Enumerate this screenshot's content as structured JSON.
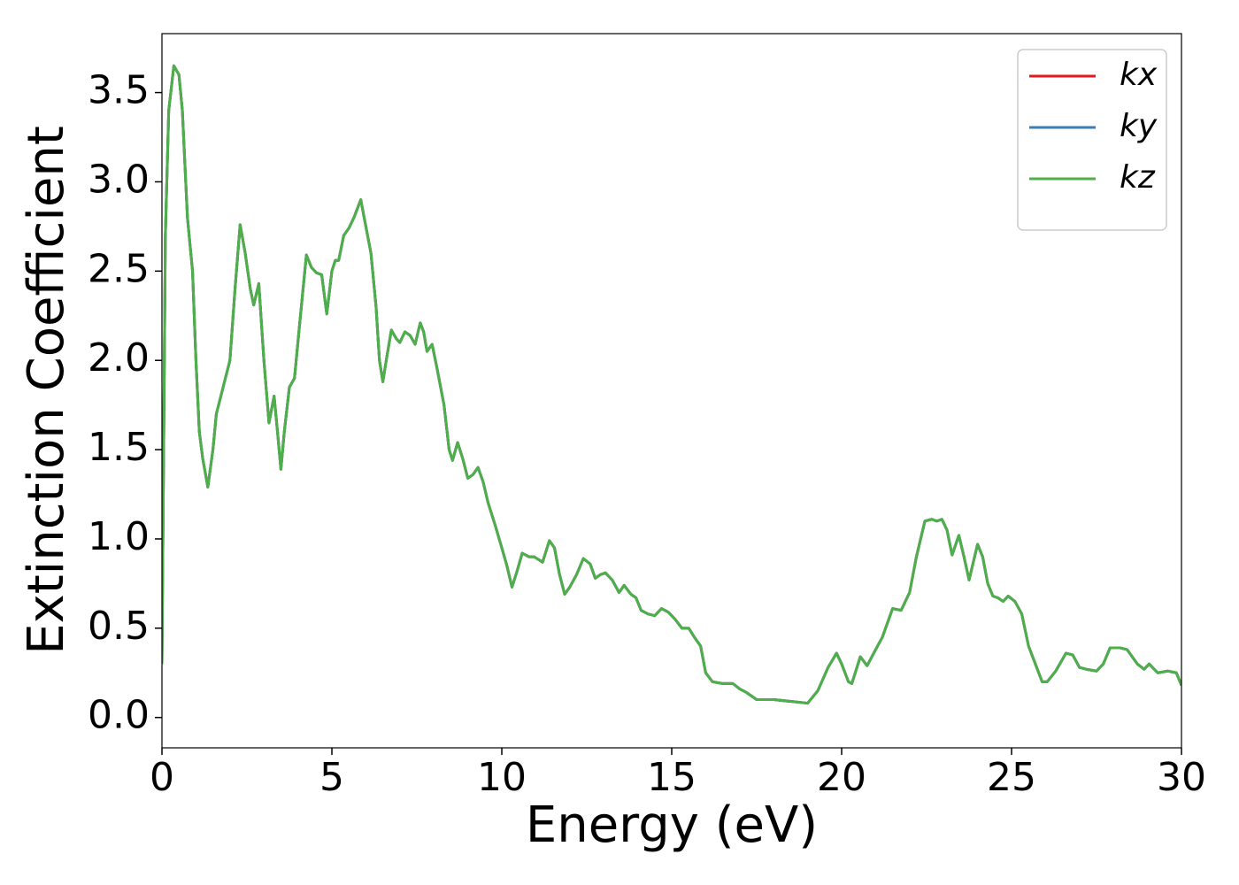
{
  "chart_data": {
    "type": "line",
    "xlabel": "Energy (eV)",
    "ylabel": "Extinction Coefficient",
    "x": [
      0,
      0.05,
      0.1,
      0.2,
      0.35,
      0.5,
      0.6,
      0.75,
      0.9,
      1.0,
      1.1,
      1.2,
      1.35,
      1.5,
      1.6,
      1.8,
      2.0,
      2.15,
      2.3,
      2.45,
      2.6,
      2.7,
      2.85,
      3.0,
      3.15,
      3.3,
      3.4,
      3.5,
      3.6,
      3.75,
      3.9,
      4.05,
      4.25,
      4.4,
      4.55,
      4.7,
      4.85,
      5.0,
      5.1,
      5.2,
      5.35,
      5.5,
      5.65,
      5.85,
      6.0,
      6.15,
      6.3,
      6.4,
      6.5,
      6.6,
      6.75,
      6.9,
      7.0,
      7.15,
      7.3,
      7.45,
      7.6,
      7.7,
      7.8,
      7.95,
      8.1,
      8.3,
      8.45,
      8.55,
      8.7,
      8.85,
      9.0,
      9.15,
      9.3,
      9.45,
      9.6,
      9.8,
      10.0,
      10.15,
      10.3,
      10.45,
      10.6,
      10.8,
      10.95,
      11.2,
      11.4,
      11.55,
      11.7,
      11.85,
      12.0,
      12.2,
      12.4,
      12.6,
      12.75,
      12.9,
      13.05,
      13.25,
      13.45,
      13.6,
      13.8,
      13.95,
      14.1,
      14.3,
      14.5,
      14.7,
      14.9,
      15.1,
      15.3,
      15.5,
      15.7,
      15.85,
      16.0,
      16.2,
      16.5,
      16.8,
      17.0,
      17.2,
      17.5,
      18.0,
      18.5,
      19.0,
      19.3,
      19.6,
      19.85,
      20.0,
      20.2,
      20.3,
      20.55,
      20.75,
      21.0,
      21.2,
      21.5,
      21.75,
      22.0,
      22.2,
      22.45,
      22.65,
      22.8,
      22.95,
      23.1,
      23.25,
      23.45,
      23.6,
      23.75,
      24.0,
      24.15,
      24.3,
      24.45,
      24.6,
      24.75,
      24.9,
      25.1,
      25.3,
      25.5,
      25.7,
      25.9,
      26.05,
      26.3,
      26.6,
      26.8,
      27.0,
      27.2,
      27.5,
      27.7,
      27.9,
      28.2,
      28.4,
      28.7,
      28.9,
      29.05,
      29.3,
      29.6,
      29.85,
      30.0
    ],
    "series": [
      {
        "name": "kx",
        "color": "#e41a1c",
        "values": [
          0.3,
          1.5,
          2.7,
          3.4,
          3.65,
          3.6,
          3.4,
          2.8,
          2.5,
          2.0,
          1.6,
          1.45,
          1.29,
          1.5,
          1.7,
          1.85,
          2.0,
          2.4,
          2.76,
          2.6,
          2.4,
          2.31,
          2.43,
          2.0,
          1.65,
          1.8,
          1.6,
          1.39,
          1.6,
          1.85,
          1.9,
          2.2,
          2.59,
          2.52,
          2.49,
          2.48,
          2.26,
          2.5,
          2.56,
          2.56,
          2.7,
          2.74,
          2.8,
          2.9,
          2.75,
          2.6,
          2.3,
          2.0,
          1.88,
          2.0,
          2.17,
          2.12,
          2.1,
          2.16,
          2.14,
          2.09,
          2.21,
          2.16,
          2.05,
          2.09,
          1.95,
          1.75,
          1.5,
          1.44,
          1.54,
          1.45,
          1.34,
          1.36,
          1.4,
          1.32,
          1.2,
          1.08,
          0.95,
          0.85,
          0.73,
          0.82,
          0.92,
          0.9,
          0.9,
          0.87,
          0.99,
          0.95,
          0.8,
          0.69,
          0.73,
          0.8,
          0.89,
          0.86,
          0.78,
          0.8,
          0.81,
          0.77,
          0.7,
          0.74,
          0.69,
          0.67,
          0.6,
          0.58,
          0.57,
          0.61,
          0.59,
          0.55,
          0.5,
          0.5,
          0.44,
          0.4,
          0.25,
          0.2,
          0.19,
          0.19,
          0.16,
          0.14,
          0.1,
          0.1,
          0.09,
          0.08,
          0.15,
          0.28,
          0.36,
          0.3,
          0.2,
          0.19,
          0.34,
          0.29,
          0.38,
          0.45,
          0.61,
          0.6,
          0.7,
          0.9,
          1.1,
          1.11,
          1.1,
          1.11,
          1.05,
          0.91,
          1.02,
          0.9,
          0.77,
          0.97,
          0.9,
          0.75,
          0.68,
          0.67,
          0.65,
          0.68,
          0.65,
          0.58,
          0.4,
          0.3,
          0.2,
          0.2,
          0.26,
          0.36,
          0.35,
          0.28,
          0.27,
          0.26,
          0.3,
          0.39,
          0.39,
          0.38,
          0.3,
          0.27,
          0.3,
          0.25,
          0.26,
          0.25,
          0.18
        ]
      },
      {
        "name": "ky",
        "color": "#377eb8",
        "values": [
          0.3,
          1.5,
          2.7,
          3.4,
          3.65,
          3.6,
          3.4,
          2.8,
          2.5,
          2.0,
          1.6,
          1.45,
          1.29,
          1.5,
          1.7,
          1.85,
          2.0,
          2.4,
          2.76,
          2.6,
          2.4,
          2.31,
          2.43,
          2.0,
          1.65,
          1.8,
          1.6,
          1.39,
          1.6,
          1.85,
          1.9,
          2.2,
          2.59,
          2.52,
          2.49,
          2.48,
          2.26,
          2.5,
          2.56,
          2.56,
          2.7,
          2.74,
          2.8,
          2.9,
          2.75,
          2.6,
          2.3,
          2.0,
          1.88,
          2.0,
          2.17,
          2.12,
          2.1,
          2.16,
          2.14,
          2.09,
          2.21,
          2.16,
          2.05,
          2.09,
          1.95,
          1.75,
          1.5,
          1.44,
          1.54,
          1.45,
          1.34,
          1.36,
          1.4,
          1.32,
          1.2,
          1.08,
          0.95,
          0.85,
          0.73,
          0.82,
          0.92,
          0.9,
          0.9,
          0.87,
          0.99,
          0.95,
          0.8,
          0.69,
          0.73,
          0.8,
          0.89,
          0.86,
          0.78,
          0.8,
          0.81,
          0.77,
          0.7,
          0.74,
          0.69,
          0.67,
          0.6,
          0.58,
          0.57,
          0.61,
          0.59,
          0.55,
          0.5,
          0.5,
          0.44,
          0.4,
          0.25,
          0.2,
          0.19,
          0.19,
          0.16,
          0.14,
          0.1,
          0.1,
          0.09,
          0.08,
          0.15,
          0.28,
          0.36,
          0.3,
          0.2,
          0.19,
          0.34,
          0.29,
          0.38,
          0.45,
          0.61,
          0.6,
          0.7,
          0.9,
          1.1,
          1.11,
          1.1,
          1.11,
          1.05,
          0.91,
          1.02,
          0.9,
          0.77,
          0.97,
          0.9,
          0.75,
          0.68,
          0.67,
          0.65,
          0.68,
          0.65,
          0.58,
          0.4,
          0.3,
          0.2,
          0.2,
          0.26,
          0.36,
          0.35,
          0.28,
          0.27,
          0.26,
          0.3,
          0.39,
          0.39,
          0.38,
          0.3,
          0.27,
          0.3,
          0.25,
          0.26,
          0.25,
          0.18
        ]
      },
      {
        "name": "kz",
        "color": "#4daf4a",
        "values": [
          0.3,
          1.5,
          2.7,
          3.4,
          3.65,
          3.6,
          3.4,
          2.8,
          2.5,
          2.0,
          1.6,
          1.45,
          1.29,
          1.5,
          1.7,
          1.85,
          2.0,
          2.4,
          2.76,
          2.6,
          2.4,
          2.31,
          2.43,
          2.0,
          1.65,
          1.8,
          1.6,
          1.39,
          1.6,
          1.85,
          1.9,
          2.2,
          2.59,
          2.52,
          2.49,
          2.48,
          2.26,
          2.5,
          2.56,
          2.56,
          2.7,
          2.74,
          2.8,
          2.9,
          2.75,
          2.6,
          2.3,
          2.0,
          1.88,
          2.0,
          2.17,
          2.12,
          2.1,
          2.16,
          2.14,
          2.09,
          2.21,
          2.16,
          2.05,
          2.09,
          1.95,
          1.75,
          1.5,
          1.44,
          1.54,
          1.45,
          1.34,
          1.36,
          1.4,
          1.32,
          1.2,
          1.08,
          0.95,
          0.85,
          0.73,
          0.82,
          0.92,
          0.9,
          0.9,
          0.87,
          0.99,
          0.95,
          0.8,
          0.69,
          0.73,
          0.8,
          0.89,
          0.86,
          0.78,
          0.8,
          0.81,
          0.77,
          0.7,
          0.74,
          0.69,
          0.67,
          0.6,
          0.58,
          0.57,
          0.61,
          0.59,
          0.55,
          0.5,
          0.5,
          0.44,
          0.4,
          0.25,
          0.2,
          0.19,
          0.19,
          0.16,
          0.14,
          0.1,
          0.1,
          0.09,
          0.08,
          0.15,
          0.28,
          0.36,
          0.3,
          0.2,
          0.19,
          0.34,
          0.29,
          0.38,
          0.45,
          0.61,
          0.6,
          0.7,
          0.9,
          1.1,
          1.11,
          1.1,
          1.11,
          1.05,
          0.91,
          1.02,
          0.9,
          0.77,
          0.97,
          0.9,
          0.75,
          0.68,
          0.67,
          0.65,
          0.68,
          0.65,
          0.58,
          0.4,
          0.3,
          0.2,
          0.2,
          0.26,
          0.36,
          0.35,
          0.28,
          0.27,
          0.26,
          0.3,
          0.39,
          0.39,
          0.38,
          0.3,
          0.27,
          0.3,
          0.25,
          0.26,
          0.25,
          0.18
        ]
      }
    ],
    "xlim": [
      0,
      30
    ],
    "xticks": [
      0,
      5,
      10,
      15,
      20,
      25,
      30
    ],
    "ylim": [
      -0.17,
      3.83
    ],
    "yticks": [
      {
        "value": 0,
        "label": "0.0"
      },
      0.5,
      {
        "value": 1,
        "label": "1.0"
      },
      1.5,
      {
        "value": 2,
        "label": "2.0"
      },
      2.5,
      {
        "value": 3,
        "label": "3.0"
      },
      3.5
    ],
    "grid": false,
    "legend": "upper right"
  }
}
